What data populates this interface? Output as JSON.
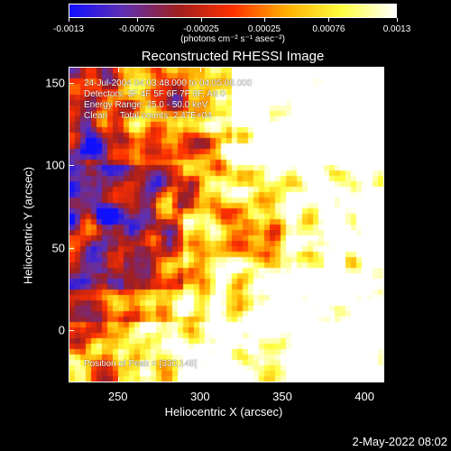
{
  "colorbar": {
    "labels": [
      "-0.0013",
      "-0.00076",
      "-0.00025",
      "0.00025",
      "0.00076",
      "0.0013"
    ],
    "units": "(photons cm⁻² s⁻¹ asec⁻²)",
    "colors": [
      "#1010ff",
      "#6030b0",
      "#a01e1e",
      "#ff3000",
      "#ffb000",
      "#ffff40",
      "#ffffff"
    ]
  },
  "title": "Reconstructed RHESSI Image",
  "info": {
    "line1": "24-Jul-2004 04:03:48.000 to 04:05:08.000",
    "line2": "Detectors: 3F 4F 5F 6F 7F 8F, Att 0",
    "line3": "Energy Range: 25.0 - 50.0 keV",
    "line4": "Clean     Total counts: 2.47E+04",
    "peak": "Position of Peak = [330,148]"
  },
  "axes": {
    "xlabel": "Heliocentric X (arcsec)",
    "ylabel": "Heliocentric Y (arcsec)",
    "xticks": [
      "250",
      "300",
      "350",
      "400"
    ],
    "yticks": [
      "150",
      "100",
      "50",
      "0"
    ],
    "xrange": [
      220,
      412
    ],
    "yrange": [
      -32,
      160
    ]
  },
  "footer": {
    "date": "2-May-2022 08:02"
  },
  "chart_data": {
    "type": "heatmap",
    "title": "Reconstructed RHESSI Image",
    "xlabel": "Heliocentric X (arcsec)",
    "ylabel": "Heliocentric Y (arcsec)",
    "xlim": [
      220,
      412
    ],
    "ylim": [
      -32,
      160
    ],
    "color_range": [
      -0.0013,
      0.0013
    ],
    "peak": [
      330,
      148
    ]
  }
}
